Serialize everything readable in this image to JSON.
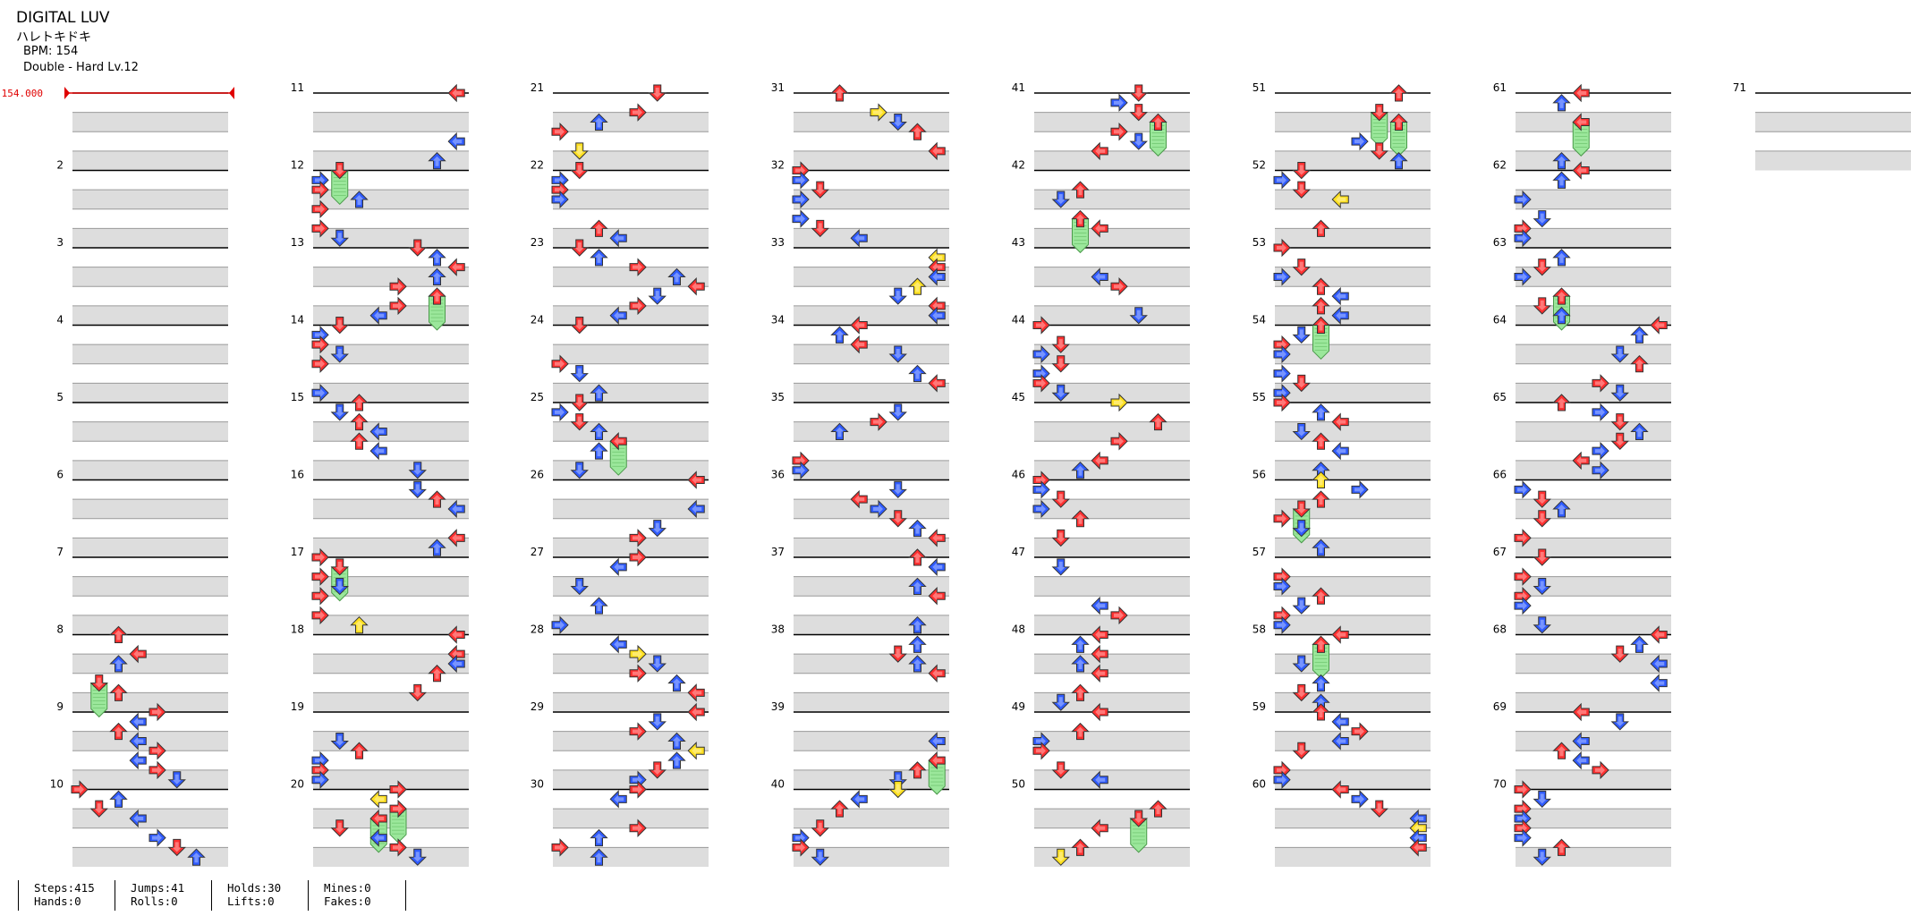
{
  "song": {
    "title": "DIGITAL LUV",
    "subtitle": "ハレトキドキ",
    "bpm_label": "BPM: 154",
    "difficulty_label": "Double - Hard Lv.12"
  },
  "bpm_marker": {
    "label": "154.000",
    "color": "#ff0000"
  },
  "measure_numbers": [
    "",
    "2",
    "3",
    "4",
    "5",
    "6",
    "7",
    "8",
    "9",
    "10",
    "11",
    "12",
    "13",
    "14",
    "15",
    "16",
    "17",
    "18",
    "19",
    "20",
    "21",
    "22",
    "23",
    "24",
    "25",
    "26",
    "27",
    "28",
    "29",
    "30",
    "31",
    "32",
    "33",
    "34",
    "35",
    "36",
    "37",
    "38",
    "39",
    "40",
    "41",
    "42",
    "43",
    "44",
    "45",
    "46",
    "47",
    "48",
    "49",
    "50",
    "51",
    "52",
    "53",
    "54",
    "55",
    "56",
    "57",
    "58",
    "59",
    "60",
    "61",
    "62",
    "63",
    "64",
    "65",
    "66",
    "67",
    "68",
    "69",
    "70",
    "71"
  ],
  "stats": {
    "steps": "Steps:415",
    "hands": "Hands:0",
    "jumps": "Jumps:41",
    "rolls": "Rolls:0",
    "holds": "Holds:30",
    "lifts": "Lifts:0",
    "mines": "Mines:0",
    "fakes": "Fakes:0"
  },
  "colors": {
    "quarter": "#ff3030",
    "eighth": "#2f5bff",
    "sixteenth": "#ffe020",
    "hold": "#9be79b",
    "band": "#dddddd"
  },
  "icons": {
    "step": "arrow-icon",
    "hold": "hold-icon",
    "bpm": "bpm-marker-icon"
  }
}
